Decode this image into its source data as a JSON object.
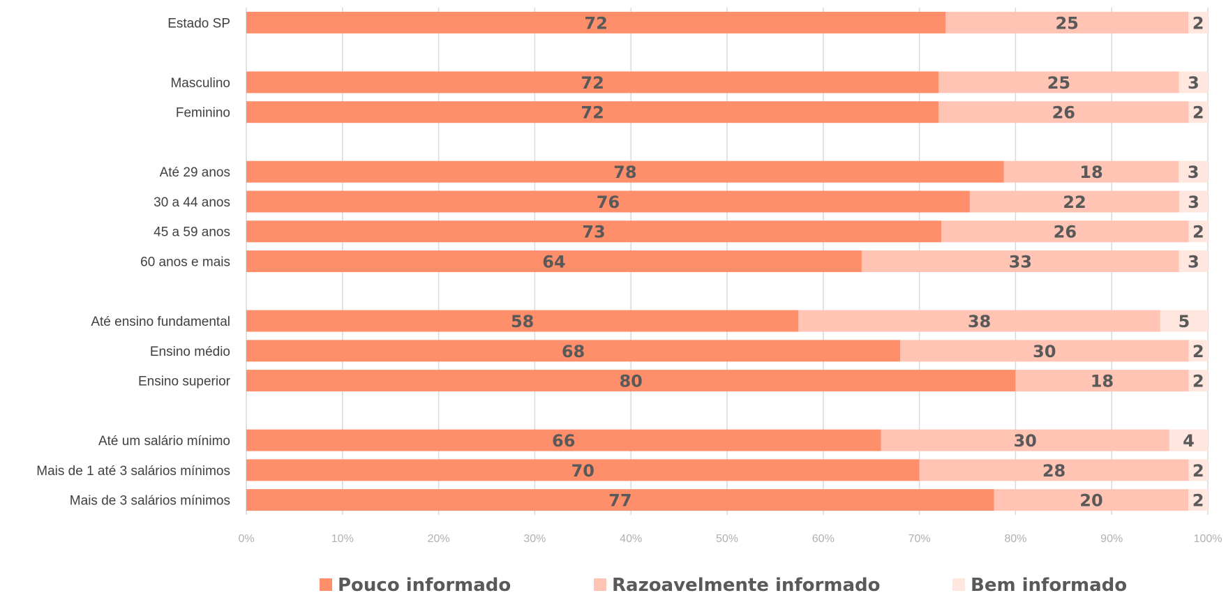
{
  "chart_data": {
    "type": "bar",
    "orientation": "horizontal",
    "stacked": "percent",
    "categories": [
      "Estado SP",
      "",
      "Masculino",
      "Feminino",
      "",
      "Até 29 anos",
      "30 a 44 anos",
      "45 a 59 anos",
      "60 anos e mais",
      "",
      "Até ensino fundamental",
      "Ensino médio",
      "Ensino superior",
      "",
      "Até um salário mínimo",
      "Mais de 1 até 3 salários mínimos",
      "Mais de 3 salários mínimos"
    ],
    "series": [
      {
        "name": "Pouco informado",
        "color": "#ff8f6b",
        "values": [
          72,
          null,
          72,
          72,
          null,
          78,
          76,
          73,
          64,
          null,
          58,
          68,
          80,
          null,
          66,
          70,
          77
        ]
      },
      {
        "name": "Razoavelmente informado",
        "color": "#ffc4b3",
        "values": [
          25,
          null,
          25,
          26,
          null,
          18,
          22,
          26,
          33,
          null,
          38,
          30,
          18,
          null,
          30,
          28,
          20
        ]
      },
      {
        "name": "Bem informado",
        "color": "#ffe6de",
        "values": [
          2,
          null,
          3,
          2,
          null,
          3,
          3,
          2,
          3,
          null,
          5,
          2,
          2,
          null,
          4,
          2,
          2
        ]
      }
    ],
    "xticks": [
      "0%",
      "10%",
      "20%",
      "30%",
      "40%",
      "50%",
      "60%",
      "70%",
      "80%",
      "90%",
      "100%"
    ],
    "xlim": [
      0,
      100
    ],
    "grid": "vertical",
    "legend": "bottom",
    "title": "",
    "xlabel": "",
    "ylabel": ""
  }
}
